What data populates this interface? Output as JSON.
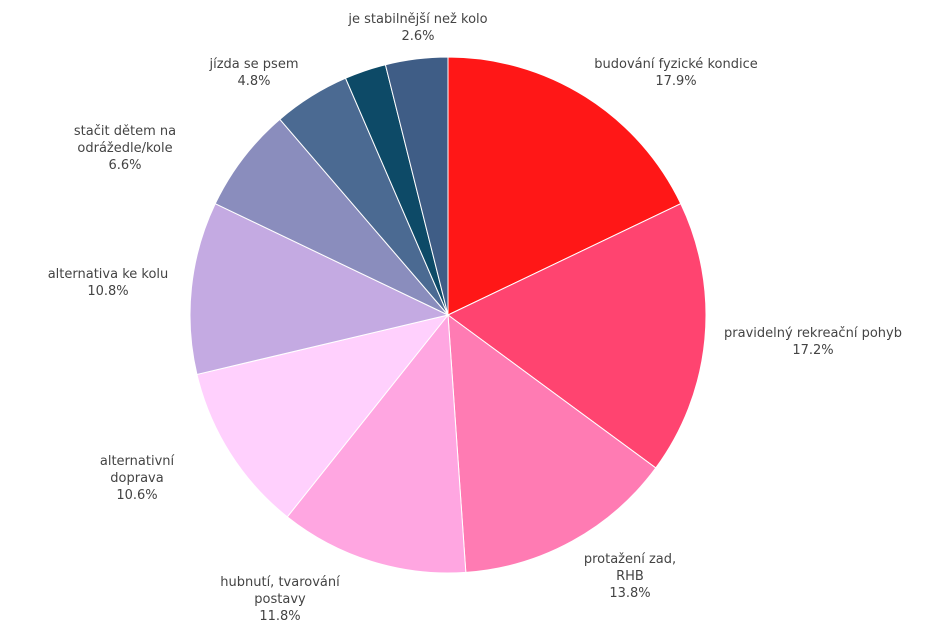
{
  "chart_data": {
    "type": "pie",
    "title": "",
    "start_angle_deg": 0,
    "direction": "clockwise",
    "slices": [
      {
        "label": [
          "budování fyzické kondice"
        ],
        "value": 17.9,
        "value_label": "17.9%",
        "color": "#ff1717"
      },
      {
        "label": [
          "pravidelný rekreační pohyb"
        ],
        "value": 17.2,
        "value_label": "17.2%",
        "color": "#ff4470"
      },
      {
        "label": [
          "protažení zad,",
          "RHB"
        ],
        "value": 13.8,
        "value_label": "13.8%",
        "color": "#ff7bb3"
      },
      {
        "label": [
          "hubnutí, tvarování",
          "postavy"
        ],
        "value": 11.8,
        "value_label": "11.8%",
        "color": "#ffa6e1"
      },
      {
        "label": [
          "alternativní",
          "doprava"
        ],
        "value": 10.6,
        "value_label": "10.6%",
        "color": "#ffd0fd"
      },
      {
        "label": [
          "alternativa ke kolu"
        ],
        "value": 10.8,
        "value_label": "10.8%",
        "color": "#c4aae2"
      },
      {
        "label": [
          "stačit dětem na",
          "odrážedle/kole"
        ],
        "value": 6.6,
        "value_label": "6.6%",
        "color": "#8a8dbd"
      },
      {
        "label": [
          "jízda se psem"
        ],
        "value": 4.8,
        "value_label": "4.8%",
        "color": "#4b6a92"
      },
      {
        "label": [
          "je stabilnější než kolo"
        ],
        "value": 2.6,
        "value_label": "2.6%",
        "color": "#0d4a67"
      },
      {
        "label": [],
        "value": 3.9,
        "value_label": "",
        "color": "#3f5d86"
      }
    ]
  }
}
